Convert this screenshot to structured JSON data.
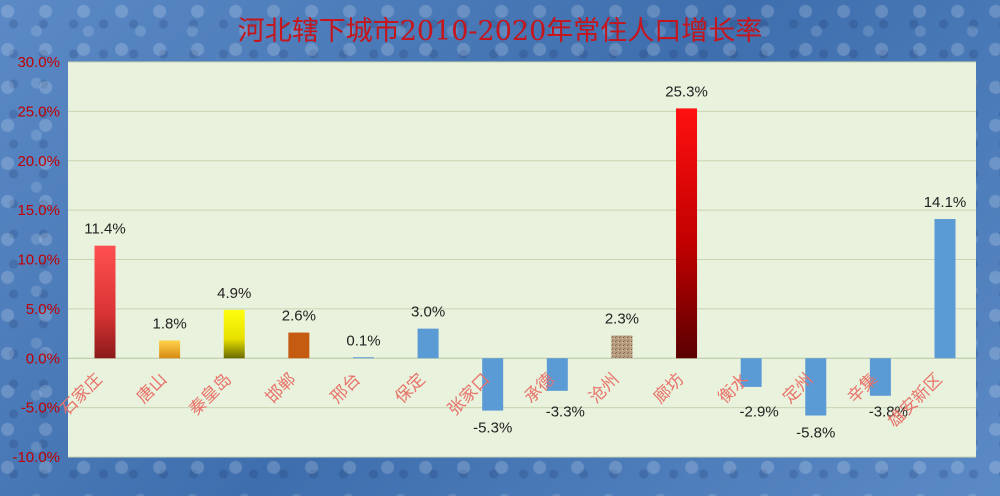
{
  "chart_data": {
    "type": "bar",
    "title": "河北辖下城市2010-2020年常住人口增长率",
    "xlabel": "",
    "ylabel": "",
    "ylim": [
      -10,
      30
    ],
    "ytick_step": 5,
    "ytick_labels": [
      "-10.0%",
      "-5.0%",
      "0.0%",
      "5.0%",
      "10.0%",
      "15.0%",
      "20.0%",
      "25.0%",
      "30.0%"
    ],
    "grid": true,
    "legend": "none",
    "categories": [
      "石家庄",
      "唐山",
      "秦皇岛",
      "邯郸",
      "邢台",
      "保定",
      "张家口",
      "承德",
      "沧州",
      "廊坊",
      "衡水",
      "定州",
      "辛集",
      "雄安新区"
    ],
    "values": [
      11.4,
      1.8,
      4.9,
      2.6,
      0.1,
      3.0,
      -5.3,
      -3.3,
      2.3,
      25.3,
      -2.9,
      -5.8,
      -3.8,
      14.1
    ],
    "data_labels": [
      "11.4%",
      "1.8%",
      "4.9%",
      "2.6%",
      "0.1%",
      "3.0%",
      "-5.3%",
      "-3.3%",
      "2.3%",
      "25.3%",
      "-2.9%",
      "-5.8%",
      "-3.8%",
      "14.1%"
    ],
    "bar_styles": [
      "red-gradient",
      "orange-gradient",
      "yellow-gradient",
      "burnt-orange",
      "blue",
      "blue",
      "blue",
      "blue",
      "sand-texture",
      "dark-red-gradient",
      "blue",
      "blue",
      "blue",
      "blue"
    ],
    "colors": {
      "plot_background": "#e9f2dc",
      "title": "#c4161c",
      "tick_labels": "#c00000",
      "category_labels": "#e8736b",
      "blue": "#5b9bd5",
      "burnt_orange": "#c55a11",
      "sand": "#a58a6e"
    }
  }
}
